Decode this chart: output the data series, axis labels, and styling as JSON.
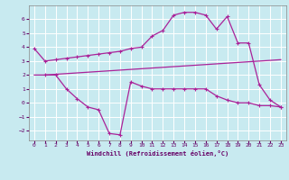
{
  "background_color": "#c8eaf0",
  "grid_color": "#ffffff",
  "line_color": "#aa2299",
  "xlabel": "Windchill (Refroidissement éolien,°C)",
  "xlabel_color": "#660066",
  "ylim": [
    -2.7,
    7.0
  ],
  "xlim": [
    -0.5,
    23.5
  ],
  "yticks": [
    -2,
    -1,
    0,
    1,
    2,
    3,
    4,
    5,
    6
  ],
  "xticks": [
    0,
    1,
    2,
    3,
    4,
    5,
    6,
    7,
    8,
    9,
    10,
    11,
    12,
    13,
    14,
    15,
    16,
    17,
    18,
    19,
    20,
    21,
    22,
    23
  ],
  "top_x": [
    0,
    1,
    2,
    3,
    4,
    5,
    6,
    7,
    8,
    9,
    10,
    11,
    12,
    13,
    14,
    15,
    16,
    17,
    18,
    19,
    20,
    21,
    22,
    23
  ],
  "top_y": [
    3.9,
    3.0,
    3.1,
    3.2,
    3.3,
    3.4,
    3.5,
    3.6,
    3.7,
    3.9,
    4.0,
    4.8,
    5.2,
    6.3,
    6.5,
    6.5,
    6.3,
    5.3,
    6.2,
    4.3,
    4.3,
    1.3,
    0.2,
    -0.3
  ],
  "mid_x": [
    0,
    1,
    2,
    3,
    4,
    5,
    6,
    7,
    8,
    9,
    10,
    11,
    12,
    13,
    14,
    15,
    16,
    17,
    18,
    19,
    20,
    21,
    22,
    23
  ],
  "mid_y": [
    2.0,
    2.0,
    2.05,
    2.1,
    2.15,
    2.2,
    2.25,
    2.3,
    2.35,
    2.4,
    2.45,
    2.5,
    2.55,
    2.6,
    2.65,
    2.7,
    2.75,
    2.8,
    2.85,
    2.9,
    2.95,
    3.0,
    3.05,
    3.1
  ],
  "bot_x": [
    1,
    2,
    3,
    4,
    5,
    6,
    7,
    8,
    9,
    10,
    11,
    12,
    13,
    14,
    15,
    16,
    17,
    18,
    19,
    20,
    21,
    22,
    23
  ],
  "bot_y": [
    2.0,
    2.0,
    1.0,
    0.3,
    -0.3,
    -0.5,
    -2.2,
    -2.3,
    1.5,
    1.2,
    1.0,
    1.0,
    1.0,
    1.0,
    1.0,
    1.0,
    0.5,
    0.2,
    0.0,
    0.0,
    -0.2,
    -0.2,
    -0.3
  ]
}
